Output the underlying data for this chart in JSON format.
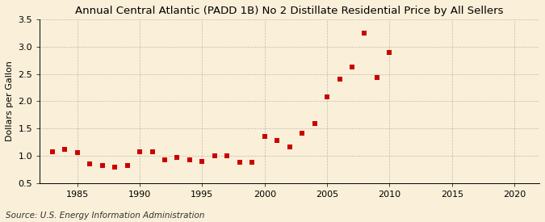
{
  "title": "Annual Central Atlantic (PADD 1B) No 2 Distillate Residential Price by All Sellers",
  "ylabel": "Dollars per Gallon",
  "source": "Source: U.S. Energy Information Administration",
  "background_color": "#faefd8",
  "years": [
    1983,
    1984,
    1985,
    1986,
    1987,
    1988,
    1989,
    1990,
    1991,
    1992,
    1993,
    1994,
    1995,
    1996,
    1997,
    1998,
    1999,
    2000,
    2001,
    2002,
    2003,
    2004,
    2005,
    2006,
    2007,
    2008,
    2009,
    2010
  ],
  "values": [
    1.07,
    1.12,
    1.06,
    0.86,
    0.82,
    0.8,
    0.82,
    1.08,
    1.08,
    0.93,
    0.97,
    0.93,
    0.9,
    1.0,
    1.0,
    0.88,
    0.88,
    1.35,
    1.28,
    1.17,
    1.42,
    1.6,
    2.08,
    2.41,
    2.62,
    3.24,
    2.44,
    2.9
  ],
  "marker_color": "#cc0000",
  "marker_size": 4,
  "xlim": [
    1982,
    2022
  ],
  "ylim": [
    0.5,
    3.5
  ],
  "xticks": [
    1985,
    1990,
    1995,
    2000,
    2005,
    2010,
    2015,
    2020
  ],
  "yticks": [
    0.5,
    1.0,
    1.5,
    2.0,
    2.5,
    3.0,
    3.5
  ],
  "grid_color": "#b0b0b0",
  "title_fontsize": 9.5,
  "label_fontsize": 8,
  "tick_fontsize": 8,
  "source_fontsize": 7.5
}
